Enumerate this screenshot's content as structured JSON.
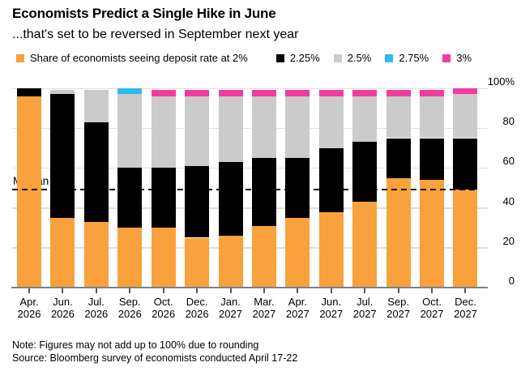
{
  "header": {
    "title": "Economists Predict a Single Hike in June",
    "subtitle": "...that's set to be reversed in September next year"
  },
  "legend": [
    {
      "label": "Share of economists seeing deposit rate at 2%",
      "color": "#F9A13C"
    },
    {
      "label": "2.25%",
      "color": "#000000"
    },
    {
      "label": "2.5%",
      "color": "#CBCBCB"
    },
    {
      "label": "2.75%",
      "color": "#2EB8EF"
    },
    {
      "label": "3%",
      "color": "#F13C9E"
    }
  ],
  "chart_data": {
    "type": "bar",
    "stacked": true,
    "unit": "percent share of economists",
    "title": "Economists Predict a Single Hike in June",
    "subtitle": "...that's set to be reversed in September next year",
    "categories": [
      "Apr. 2026",
      "Jun. 2026",
      "Jul. 2026",
      "Sep. 2026",
      "Oct. 2026",
      "Dec. 2026",
      "Jan. 2027",
      "Mar. 2027",
      "Apr. 2027",
      "Jun. 2027",
      "Jul. 2027",
      "Sep. 2027",
      "Oct. 2027",
      "Dec. 2027"
    ],
    "category_lines": [
      [
        "Apr.",
        "2026"
      ],
      [
        "Jun.",
        "2026"
      ],
      [
        "Jul.",
        "2026"
      ],
      [
        "Sep.",
        "2026"
      ],
      [
        "Oct.",
        "2026"
      ],
      [
        "Dec.",
        "2026"
      ],
      [
        "Jan.",
        "2027"
      ],
      [
        "Mar.",
        "2027"
      ],
      [
        "Apr.",
        "2027"
      ],
      [
        "Jun.",
        "2027"
      ],
      [
        "Jul.",
        "2027"
      ],
      [
        "Sep.",
        "2027"
      ],
      [
        "Oct.",
        "2027"
      ],
      [
        "Dec.",
        "2027"
      ]
    ],
    "series": [
      {
        "name": "2%",
        "color": "#F9A13C",
        "values": [
          96,
          35,
          33,
          30,
          30,
          25,
          26,
          31,
          35,
          38,
          43,
          55,
          54,
          49
        ]
      },
      {
        "name": "2.25%",
        "color": "#000000",
        "values": [
          4,
          62,
          50,
          30,
          30,
          36,
          37,
          34,
          30,
          32,
          30,
          20,
          21,
          26
        ]
      },
      {
        "name": "2.5%",
        "color": "#CBCBCB",
        "values": [
          0,
          2,
          16,
          37,
          36,
          35,
          33,
          31,
          31,
          26,
          23,
          21,
          21,
          22
        ]
      },
      {
        "name": "2.75%",
        "color": "#2EB8EF",
        "values": [
          0,
          0,
          0,
          3,
          0,
          0,
          0,
          0,
          0,
          0,
          0,
          0,
          0,
          0
        ]
      },
      {
        "name": "3%",
        "color": "#F13C9E",
        "values": [
          0,
          0,
          0,
          0,
          3,
          3,
          3,
          3,
          3,
          3,
          3,
          3,
          3,
          3
        ]
      }
    ],
    "yticks": [
      {
        "label": "100%",
        "value": 100
      },
      {
        "label": "80",
        "value": 80
      },
      {
        "label": "60",
        "value": 60
      },
      {
        "label": "40",
        "value": 40
      },
      {
        "label": "20",
        "value": 20
      },
      {
        "label": "0",
        "value": 0
      }
    ],
    "ylim": [
      0,
      100
    ],
    "xlabel": "",
    "ylabel": "",
    "grid": "horizontal",
    "legend_position": "top",
    "median": {
      "label": "Median",
      "value": 49
    }
  },
  "footer": {
    "note": "Note: Figures may not add up to 100% due to rounding",
    "source": "Source: Bloomberg survey of economists conducted April 17-22"
  }
}
